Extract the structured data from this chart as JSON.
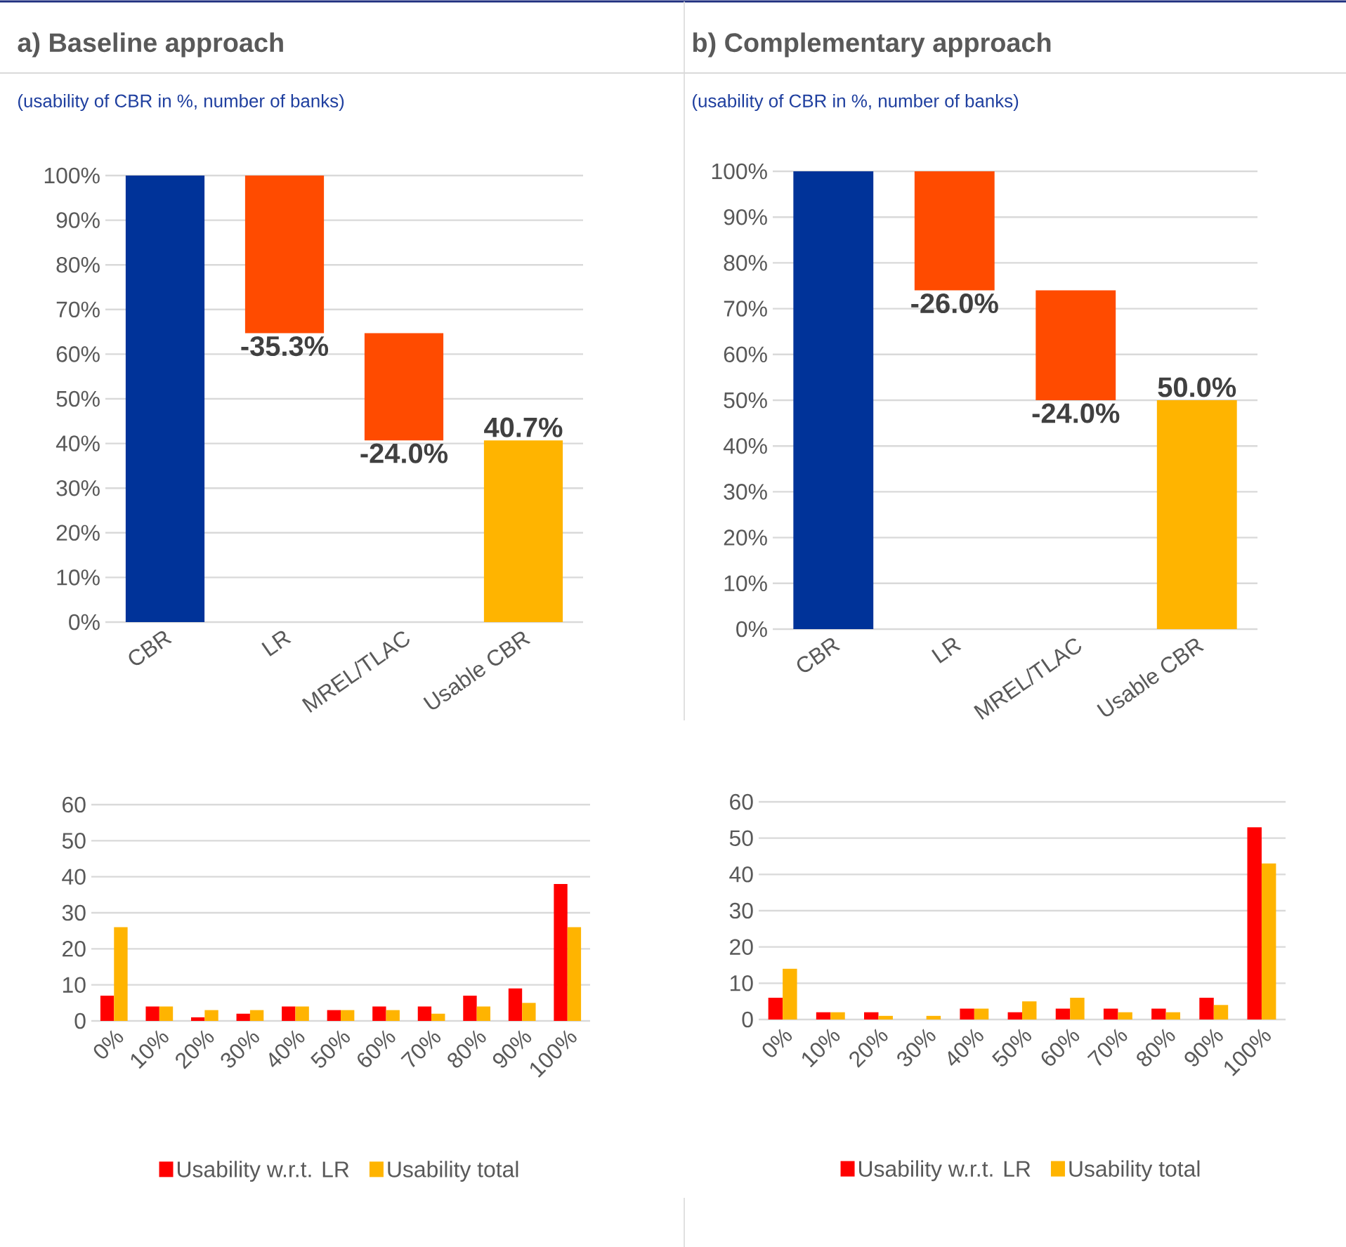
{
  "chart_data": [
    {
      "type": "bar",
      "title": "a) Baseline approach",
      "subtitle": "(usability of CBR in %, number of banks)",
      "categories": [
        "CBR",
        "LR",
        "MREL/TLAC",
        "Usable CBR"
      ],
      "values": [
        100,
        -35.3,
        -24.0,
        40.7
      ],
      "base": [
        0,
        100,
        64.7,
        0
      ],
      "colors": [
        "#003399",
        "#ff4b00",
        "#ff4b00",
        "#ffb400"
      ],
      "value_labels": [
        null,
        "-35.3%",
        "-24.0%",
        "40.7%"
      ],
      "ylim": [
        0,
        100
      ],
      "yticks": [
        {
          "value": 0,
          "label": "0%"
        },
        {
          "value": 10,
          "label": "10%"
        },
        {
          "value": 20,
          "label": "20%"
        },
        {
          "value": 30,
          "label": "30%"
        },
        {
          "value": 40,
          "label": "40%"
        },
        {
          "value": 50,
          "label": "50%"
        },
        {
          "value": 60,
          "label": "60%"
        },
        {
          "value": 70,
          "label": "70%"
        },
        {
          "value": 80,
          "label": "80%"
        },
        {
          "value": 90,
          "label": "90%"
        },
        {
          "value": 100,
          "label": "100%"
        }
      ],
      "grid": "y"
    },
    {
      "type": "bar",
      "title": "b) Complementary approach",
      "subtitle": "(usability of CBR in %, number of banks)",
      "categories": [
        "CBR",
        "LR",
        "MREL/TLAC",
        "Usable CBR"
      ],
      "values": [
        100,
        -26.0,
        -24.0,
        50.0
      ],
      "base": [
        0,
        100,
        74.0,
        0
      ],
      "colors": [
        "#003399",
        "#ff4b00",
        "#ff4b00",
        "#ffb400"
      ],
      "value_labels": [
        null,
        "-26.0%",
        "-24.0%",
        "50.0%"
      ],
      "ylim": [
        0,
        100
      ],
      "yticks": [
        {
          "value": 0,
          "label": "0%"
        },
        {
          "value": 10,
          "label": "10%"
        },
        {
          "value": 20,
          "label": "20%"
        },
        {
          "value": 30,
          "label": "30%"
        },
        {
          "value": 40,
          "label": "40%"
        },
        {
          "value": 50,
          "label": "50%"
        },
        {
          "value": 60,
          "label": "60%"
        },
        {
          "value": 70,
          "label": "70%"
        },
        {
          "value": 80,
          "label": "80%"
        },
        {
          "value": 90,
          "label": "90%"
        },
        {
          "value": 100,
          "label": "100%"
        }
      ],
      "grid": "y"
    },
    {
      "type": "bar",
      "categories": [
        "0%",
        "10%",
        "20%",
        "30%",
        "40%",
        "50%",
        "60%",
        "70%",
        "80%",
        "90%",
        "100%"
      ],
      "series": [
        {
          "name": "Usability w.r.t. LR",
          "color": "#ff0000",
          "values": [
            7,
            4,
            1,
            2,
            4,
            3,
            4,
            4,
            7,
            9,
            38
          ]
        },
        {
          "name": "Usability total",
          "color": "#ffb400",
          "values": [
            26,
            4,
            3,
            3,
            4,
            3,
            3,
            2,
            4,
            5,
            26
          ]
        }
      ],
      "ylim": [
        0,
        60
      ],
      "yticks": [
        0,
        10,
        20,
        30,
        40,
        50,
        60
      ],
      "grid": "y",
      "legend": "bottom"
    },
    {
      "type": "bar",
      "categories": [
        "0%",
        "10%",
        "20%",
        "30%",
        "40%",
        "50%",
        "60%",
        "70%",
        "80%",
        "90%",
        "100%"
      ],
      "series": [
        {
          "name": "Usability w.r.t. LR",
          "color": "#ff0000",
          "values": [
            6,
            2,
            2,
            0,
            3,
            2,
            3,
            3,
            3,
            6,
            53
          ]
        },
        {
          "name": "Usability total",
          "color": "#ffb400",
          "values": [
            14,
            2,
            1,
            1,
            3,
            5,
            6,
            2,
            2,
            4,
            43
          ]
        }
      ],
      "ylim": [
        0,
        60
      ],
      "yticks": [
        0,
        10,
        20,
        30,
        40,
        50,
        60
      ],
      "grid": "y",
      "legend": "bottom"
    }
  ]
}
